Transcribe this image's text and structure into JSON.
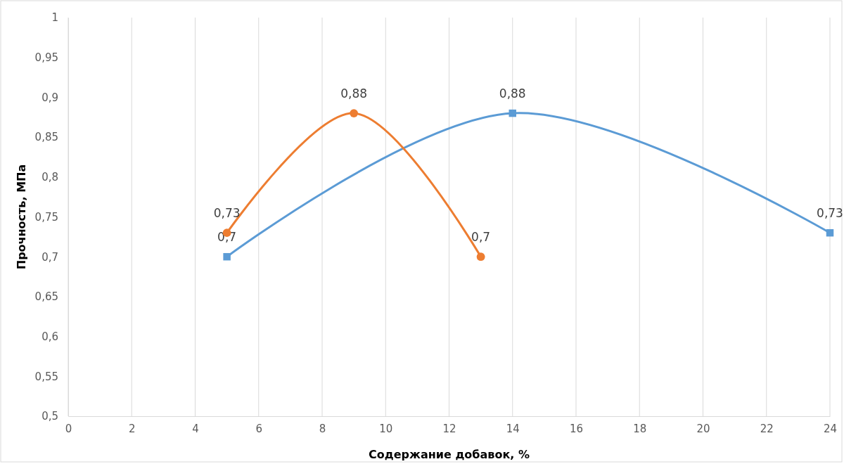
{
  "chart_data": {
    "type": "line",
    "xlabel": "Содержание добавок, %",
    "ylabel": "Прочность, МПа",
    "xlim": [
      0,
      24
    ],
    "xticks": [
      0,
      2,
      4,
      6,
      8,
      10,
      12,
      14,
      16,
      18,
      20,
      22,
      24
    ],
    "ylim": [
      0.5,
      1
    ],
    "yticks": [
      {
        "value": 0.5,
        "label": "0,5"
      },
      {
        "value": 0.55,
        "label": "0,55"
      },
      {
        "value": 0.6,
        "label": "0,6"
      },
      {
        "value": 0.65,
        "label": "0,65"
      },
      {
        "value": 0.7,
        "label": "0,7"
      },
      {
        "value": 0.75,
        "label": "0,75"
      },
      {
        "value": 0.8,
        "label": "0,8"
      },
      {
        "value": 0.85,
        "label": "0,85"
      },
      {
        "value": 0.9,
        "label": "0,9"
      },
      {
        "value": 0.95,
        "label": "0,95"
      },
      {
        "value": 1,
        "label": "1"
      }
    ],
    "grid": "x",
    "series": [
      {
        "color": "#5b9bd5",
        "marker": "square",
        "x": [
          5,
          14,
          24
        ],
        "values": [
          0.7,
          0.88,
          0.73
        ],
        "value_labels": [
          "0,7",
          "0,88",
          "0,73"
        ]
      },
      {
        "color": "#ed7d31",
        "marker": "circle",
        "x": [
          5,
          9,
          13
        ],
        "values": [
          0.73,
          0.88,
          0.7
        ],
        "value_labels": [
          "0,73",
          "0,88",
          "0,7"
        ]
      }
    ]
  }
}
